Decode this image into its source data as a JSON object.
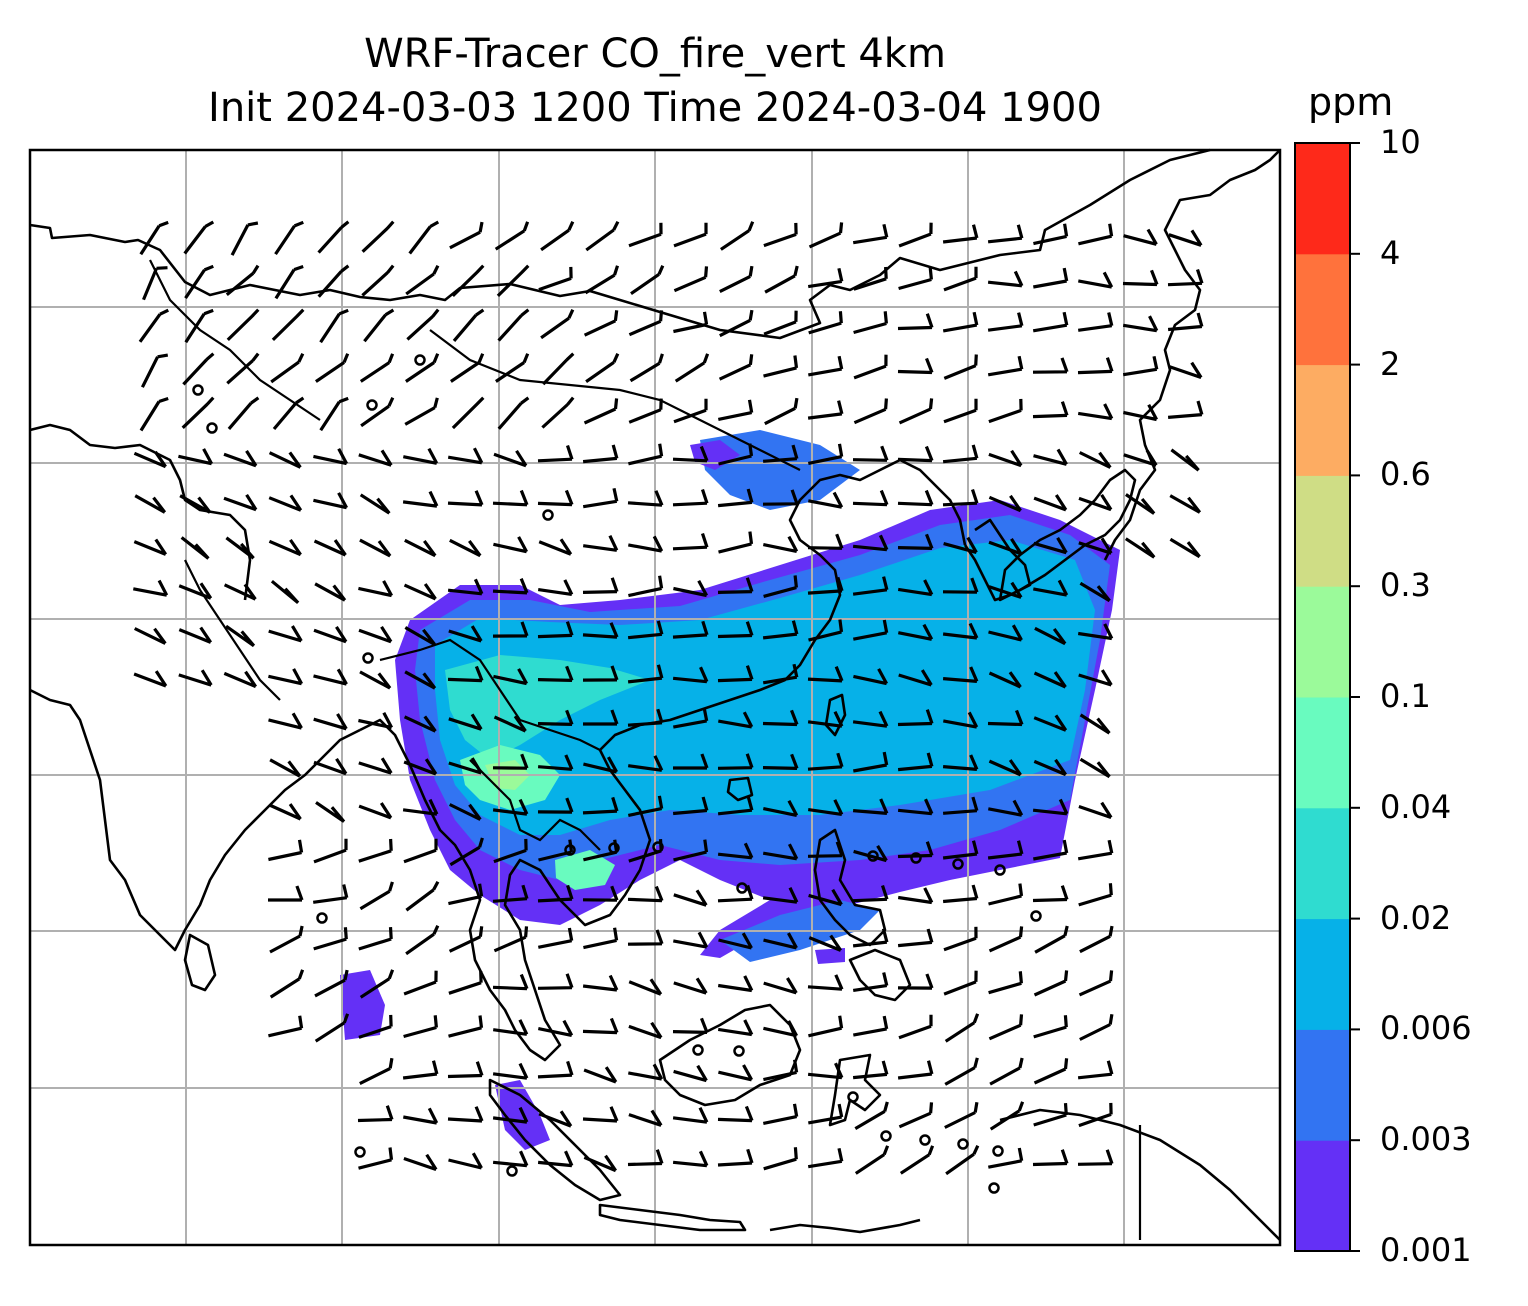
{
  "chart_data": {
    "type": "heatmap",
    "title": "WRF-Tracer CO_fire_vert 4km",
    "subtitle": "Init 2024-03-03 1200 Time 2024-03-04 1900",
    "colorbar": {
      "unit": "ppm",
      "levels": [
        "0.001",
        "0.003",
        "0.006",
        "0.02",
        "0.04",
        "0.1",
        "0.3",
        "0.6",
        "2",
        "4",
        "10"
      ],
      "colors": [
        "#6430f6",
        "#3274f2",
        "#06b1e8",
        "#2fdcd0",
        "#69fbbf",
        "#9bfa9a",
        "#cfdd85",
        "#fdac62",
        "#ff723c",
        "#fe291a"
      ]
    },
    "grid": true,
    "overlays": [
      "coastlines",
      "country borders",
      "wind barbs"
    ]
  }
}
